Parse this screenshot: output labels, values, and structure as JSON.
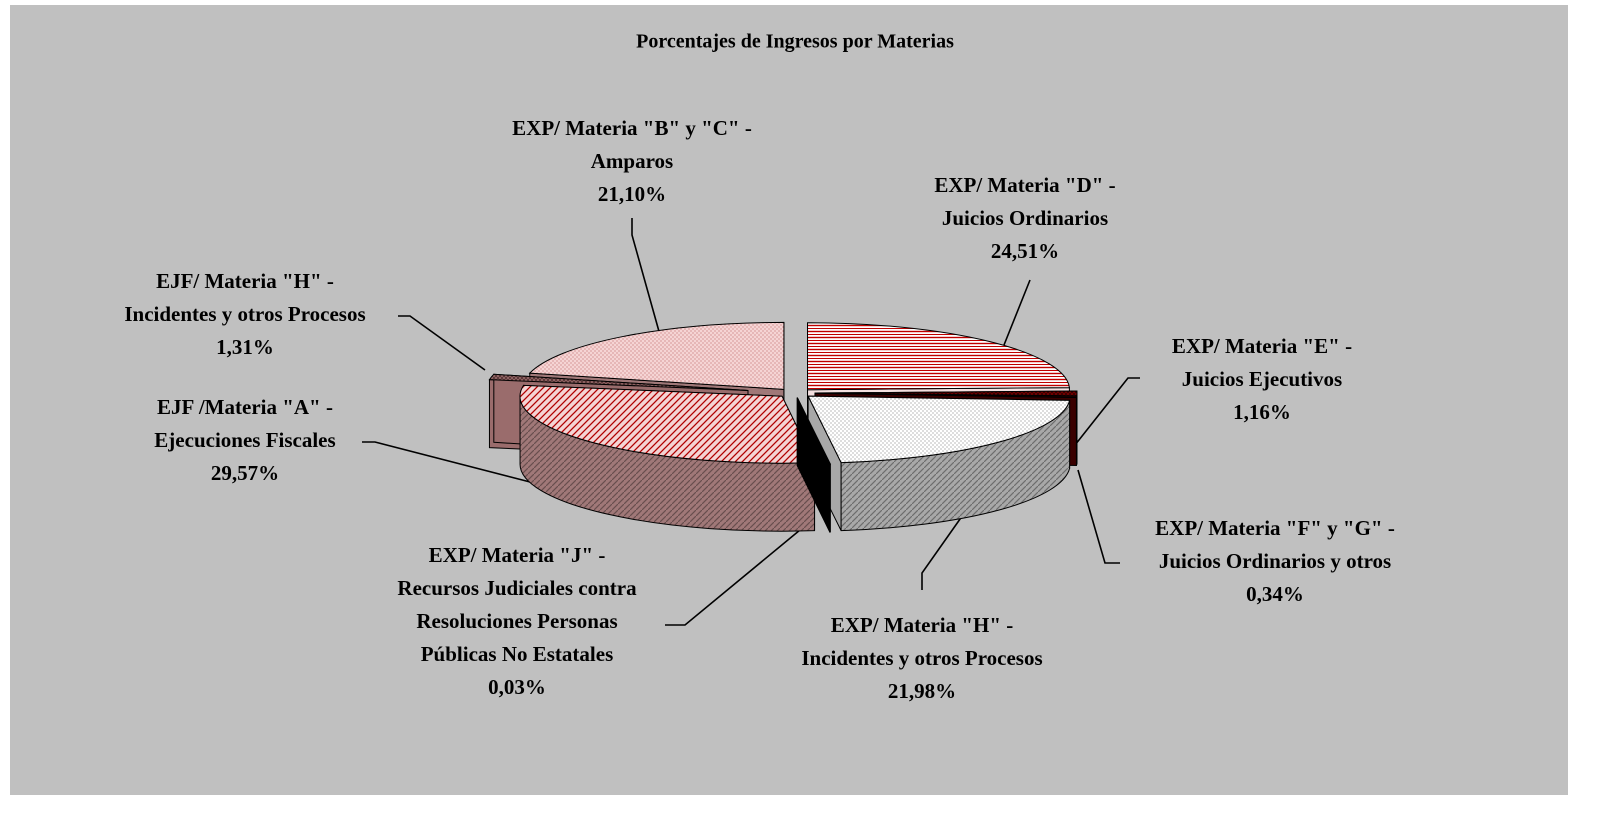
{
  "chart_data": {
    "type": "pie3d",
    "title": "Porcentajes de Ingresos  por  Materias",
    "categories": [
      [
        "EXP/ Materia \"D\" -",
        "Juicios Ordinarios"
      ],
      [
        "EXP/ Materia \"E\" -",
        "Juicios Ejecutivos"
      ],
      [
        "EXP/ Materia \"F\" y \"G\" -",
        "Juicios Ordinarios y otros"
      ],
      [
        "EXP/ Materia \"H\" -",
        "Incidentes y otros Procesos"
      ],
      [
        "EXP/ Materia \"J\" -",
        "Recursos Judiciales contra",
        "Resoluciones  Personas",
        "Públicas No Estatales"
      ],
      [
        "EJF /Materia \"A\" -",
        "Ejecuciones Fiscales"
      ],
      [
        "EJF/ Materia \"H\" -",
        "Incidentes y otros Procesos"
      ],
      [
        "EXP/ Materia \"B\" y \"C\" -",
        "Amparos"
      ]
    ],
    "values": [
      24.51,
      1.16,
      0.34,
      21.98,
      0.03,
      29.57,
      1.31,
      21.1
    ],
    "value_labels": [
      "24,51%",
      "1,16%",
      "0,34%",
      "21,98%",
      "0,03%",
      "29,57%",
      "1,31%",
      "21,10%"
    ],
    "colors": [
      "#f4e0e0",
      "#800000",
      "#3a0000",
      "#a8a8a8",
      "#000000",
      "#a07878",
      "#9a6c6c",
      "#a07878"
    ]
  }
}
